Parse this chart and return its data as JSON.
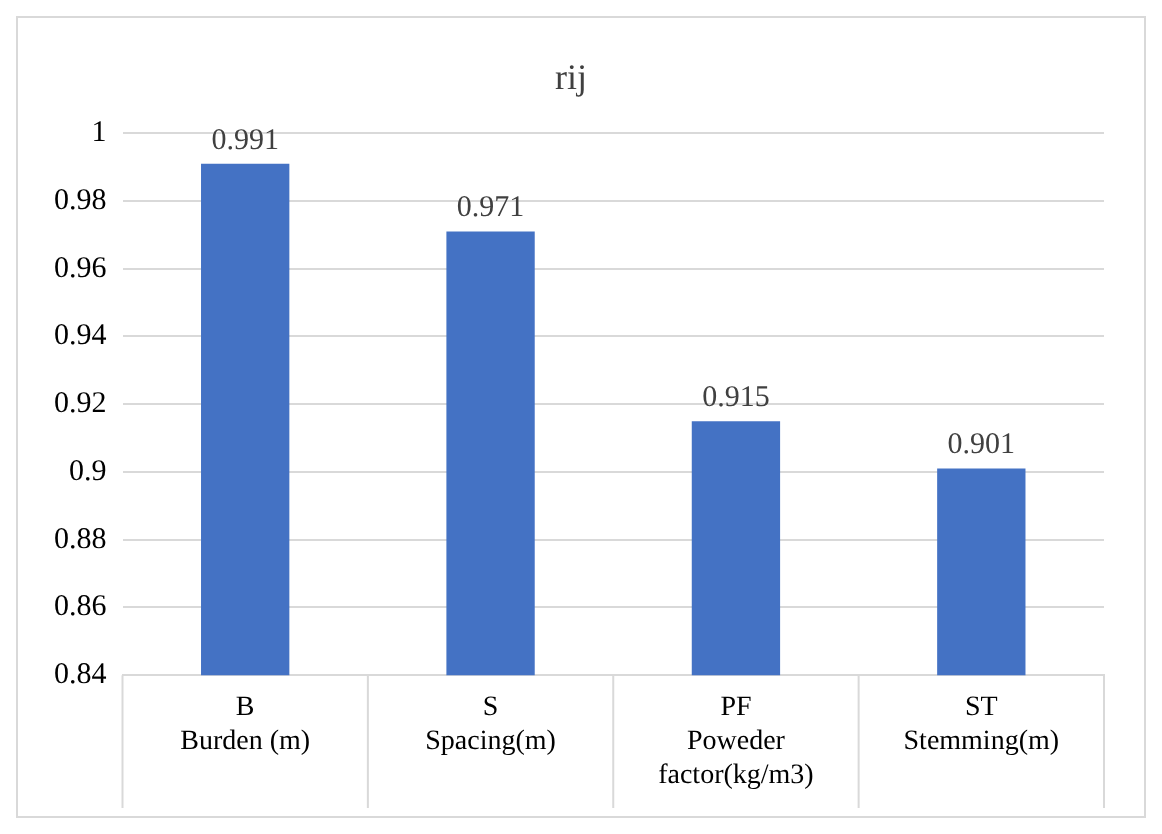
{
  "chart_data": {
    "type": "bar",
    "title": "rij",
    "categories": [
      "B\nBurden (m)",
      "S\nSpacing(m)",
      "PF\nPoweder factor(kg/m3)",
      "ST\nStemming(m)"
    ],
    "values": [
      0.991,
      0.971,
      0.915,
      0.901
    ],
    "color": "#4472c4",
    "ylim": [
      0.84,
      1
    ],
    "yticks": [
      0.84,
      0.86,
      0.88,
      0.9,
      0.92,
      0.94,
      0.96,
      0.98,
      1
    ],
    "grid": "y",
    "data_labels": true,
    "legend": false
  }
}
